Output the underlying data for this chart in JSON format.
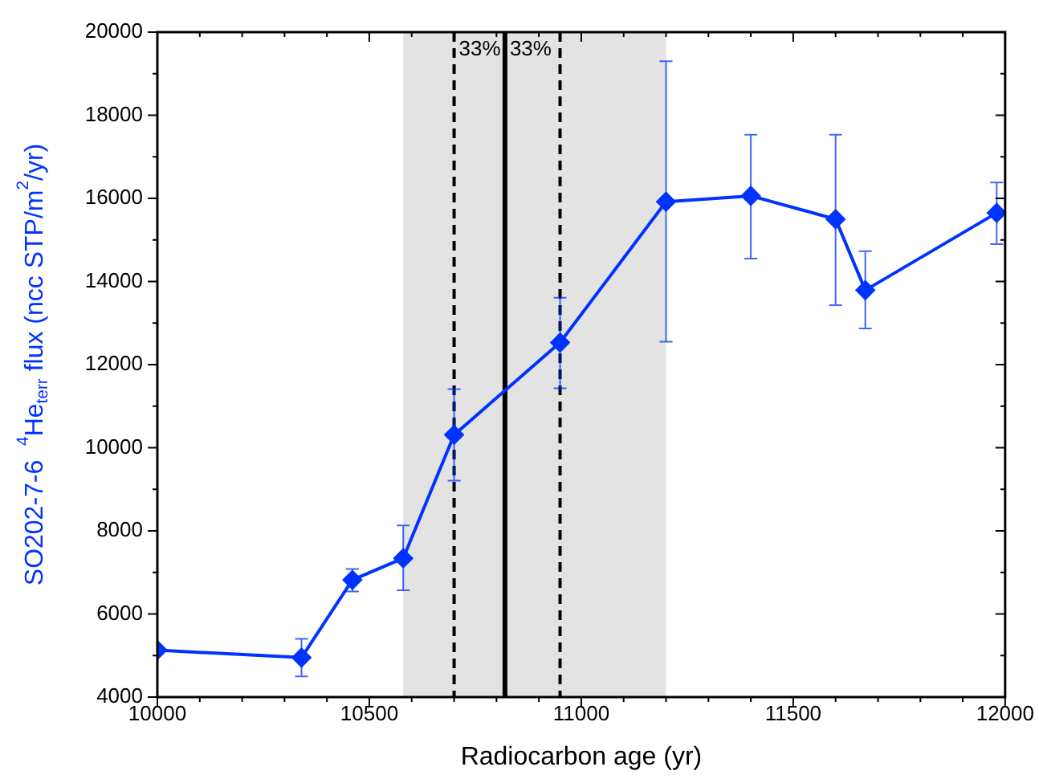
{
  "chart_data": {
    "type": "line",
    "xlabel": "Radiocarbon age (yr)",
    "ylabel": "SO202-7-6  $^{4}$He$_{terr}$ flux (ncc STP/m$^{2}$/yr)",
    "x": [
      10000,
      10340,
      10460,
      10580,
      10700,
      10950,
      11200,
      11400,
      11600,
      11670,
      11980
    ],
    "series": [
      {
        "color": "#0033ff",
        "values": [
          5130,
          4950,
          6820,
          7340,
          10310,
          12530,
          15920,
          16060,
          15500,
          13790,
          15650
        ],
        "errors": [
          null,
          [
            4500,
            5400
          ],
          [
            6540,
            7080
          ],
          [
            6570,
            8130
          ],
          [
            9210,
            11410
          ],
          [
            11430,
            13610
          ],
          [
            12550,
            19300
          ],
          [
            14550,
            17530
          ],
          [
            13430,
            17530
          ],
          [
            12870,
            14730
          ],
          [
            14900,
            16380
          ]
        ]
      }
    ],
    "xlim": [
      10000,
      12000
    ],
    "xticks": [
      10000,
      {
        "value": 10100,
        "label": null
      },
      {
        "value": 10200,
        "label": null
      },
      {
        "value": 10300,
        "label": null
      },
      {
        "value": 10400,
        "label": null
      },
      10500,
      {
        "value": 10600,
        "label": null
      },
      {
        "value": 10700,
        "label": null
      },
      {
        "value": 10800,
        "label": null
      },
      {
        "value": 10900,
        "label": null
      },
      11000,
      {
        "value": 11100,
        "label": null
      },
      {
        "value": 11200,
        "label": null
      },
      {
        "value": 11300,
        "label": null
      },
      {
        "value": 11400,
        "label": null
      },
      11500,
      {
        "value": 11600,
        "label": null
      },
      {
        "value": 11700,
        "label": null
      },
      {
        "value": 11800,
        "label": null
      },
      {
        "value": 11900,
        "label": null
      },
      12000
    ],
    "ylim": [
      4000,
      20000
    ],
    "yticks": [
      4000,
      {
        "value": 5000,
        "label": null
      },
      6000,
      {
        "value": 7000,
        "label": null
      },
      8000,
      {
        "value": 9000,
        "label": null
      },
      10000,
      {
        "value": 11000,
        "label": null
      },
      12000,
      {
        "value": 13000,
        "label": null
      },
      14000,
      {
        "value": 15000,
        "label": null
      },
      16000,
      {
        "value": 17000,
        "label": null
      },
      18000,
      {
        "value": 19000,
        "label": null
      },
      20000
    ],
    "annotations": [
      "33%",
      "33%"
    ],
    "ref_lines": [
      {
        "axis": "x",
        "value": 10700,
        "line_style": "dashed",
        "color": "#000000"
      },
      {
        "axis": "x",
        "value": 10820,
        "line_style": "solid",
        "color": "#000000"
      },
      {
        "axis": "x",
        "value": 10950,
        "line_style": "dashed",
        "color": "#000000"
      }
    ],
    "bands": [
      {
        "axis": "x",
        "from": 10580,
        "to": 11200,
        "color": "#e3e3e3"
      }
    ],
    "marker": "diamond",
    "line_style": "solid",
    "grid": false,
    "legend": false
  }
}
